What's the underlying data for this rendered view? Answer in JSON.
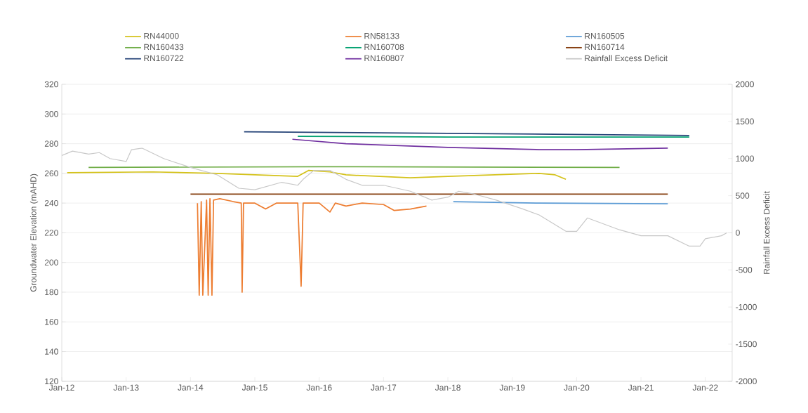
{
  "chart_data": {
    "type": "line",
    "ylabel": "Groundwater Elevation (mAHD)",
    "y2label": "Rainfall Excess Deficit",
    "xlim": [
      "2012-01",
      "2022-06"
    ],
    "xticks": [
      {
        "value": "2012-01",
        "label": "Jan-12"
      },
      {
        "value": "2013-01",
        "label": "Jan-13"
      },
      {
        "value": "2014-01",
        "label": "Jan-14"
      },
      {
        "value": "2015-01",
        "label": "Jan-15"
      },
      {
        "value": "2016-01",
        "label": "Jan-16"
      },
      {
        "value": "2017-01",
        "label": "Jan-17"
      },
      {
        "value": "2018-01",
        "label": "Jan-18"
      },
      {
        "value": "2019-01",
        "label": "Jan-19"
      },
      {
        "value": "2020-01",
        "label": "Jan-20"
      },
      {
        "value": "2021-01",
        "label": "Jan-21"
      },
      {
        "value": "2022-01",
        "label": "Jan-22"
      }
    ],
    "ylim": [
      120,
      320
    ],
    "yticks": [
      120,
      140,
      160,
      180,
      200,
      220,
      240,
      260,
      280,
      300,
      320
    ],
    "y2lim": [
      -2000,
      2000
    ],
    "y2ticks": [
      -2000,
      -1500,
      -1000,
      -500,
      0,
      500,
      1000,
      1500,
      2000
    ],
    "grid": "y",
    "legend": "top",
    "series": [
      {
        "name": "RN44000",
        "color": "#d4c21a",
        "x": [
          "2012-02",
          "2013-06",
          "2014-06",
          "2015-09",
          "2015-11",
          "2016-03",
          "2016-06",
          "2017-06",
          "2018-01",
          "2019-06",
          "2019-09",
          "2019-11"
        ],
        "values": [
          260.5,
          261,
          260,
          258,
          262,
          261,
          259,
          257,
          258,
          260,
          259,
          256
        ]
      },
      {
        "name": "RN58133",
        "color": "#ed7d31",
        "x": [
          "2014-02-10",
          "2014-02-20",
          "2014-03-01",
          "2014-03-10",
          "2014-04-01",
          "2014-04-10",
          "2014-04-20",
          "2014-05-01",
          "2014-05-10",
          "2014-06-15",
          "2014-09-01",
          "2014-10-15",
          "2014-10-20",
          "2014-10-28",
          "2015-01-01",
          "2015-03-01",
          "2015-05-01",
          "2015-09-01",
          "2015-09-20",
          "2015-10-01",
          "2016-01-01",
          "2016-03-01",
          "2016-04-01",
          "2016-06-01",
          "2016-09-01",
          "2017-01-01",
          "2017-03-01",
          "2017-06-01",
          "2017-09-01"
        ],
        "values": [
          240,
          178,
          241,
          178,
          242,
          178,
          243,
          178,
          242,
          243,
          241,
          240,
          180,
          240,
          240,
          236,
          240,
          240,
          184,
          240,
          240,
          234,
          240,
          238,
          240,
          239,
          235,
          236,
          238
        ]
      },
      {
        "name": "RN160505",
        "color": "#5b9bd5",
        "x": [
          "2018-02",
          "2019-06",
          "2021-06"
        ],
        "values": [
          241,
          240,
          239.5
        ]
      },
      {
        "name": "RN160433",
        "color": "#70ad47",
        "x": [
          "2012-06",
          "2016-01",
          "2020-09"
        ],
        "values": [
          264,
          264.5,
          264
        ]
      },
      {
        "name": "RN160708",
        "color": "#00a070",
        "x": [
          "2015-09",
          "2018-01",
          "2021-10"
        ],
        "values": [
          285,
          284.5,
          284.5
        ]
      },
      {
        "name": "RN160714",
        "color": "#843c0c",
        "x": [
          "2014-01",
          "2017-06",
          "2021-06"
        ],
        "values": [
          246,
          246,
          246
        ]
      },
      {
        "name": "RN160722",
        "color": "#264478",
        "x": [
          "2014-11",
          "2018-01",
          "2021-10"
        ],
        "values": [
          288,
          287,
          285.5
        ]
      },
      {
        "name": "RN160807",
        "color": "#7030a0",
        "x": [
          "2015-08",
          "2016-06",
          "2018-01",
          "2019-06",
          "2020-01",
          "2021-06"
        ],
        "values": [
          283,
          280,
          277.5,
          276,
          276,
          277
        ]
      },
      {
        "name": "Rainfall Excess Deficit",
        "color": "#c8c8c8",
        "axis": "y2",
        "x": [
          "2012-01",
          "2012-03",
          "2012-06",
          "2012-08",
          "2012-10",
          "2013-01",
          "2013-02",
          "2013-04",
          "2013-08",
          "2014-01",
          "2014-06",
          "2014-10",
          "2015-01",
          "2015-06",
          "2015-09",
          "2015-10",
          "2015-12",
          "2016-03",
          "2016-06",
          "2016-09",
          "2017-01",
          "2017-06",
          "2017-10",
          "2018-01",
          "2018-03",
          "2018-06",
          "2018-10",
          "2019-03",
          "2019-06",
          "2019-11",
          "2020-01",
          "2020-03",
          "2020-09",
          "2021-01",
          "2021-06",
          "2021-10",
          "2021-12",
          "2022-01",
          "2022-04",
          "2022-05"
        ],
        "values": [
          1040,
          1100,
          1060,
          1080,
          1000,
          960,
          1120,
          1140,
          1000,
          880,
          780,
          600,
          580,
          680,
          640,
          720,
          840,
          840,
          720,
          640,
          640,
          560,
          440,
          480,
          560,
          520,
          440,
          320,
          240,
          20,
          20,
          200,
          40,
          -40,
          -40,
          -180,
          -180,
          -80,
          -40,
          0
        ]
      }
    ]
  }
}
